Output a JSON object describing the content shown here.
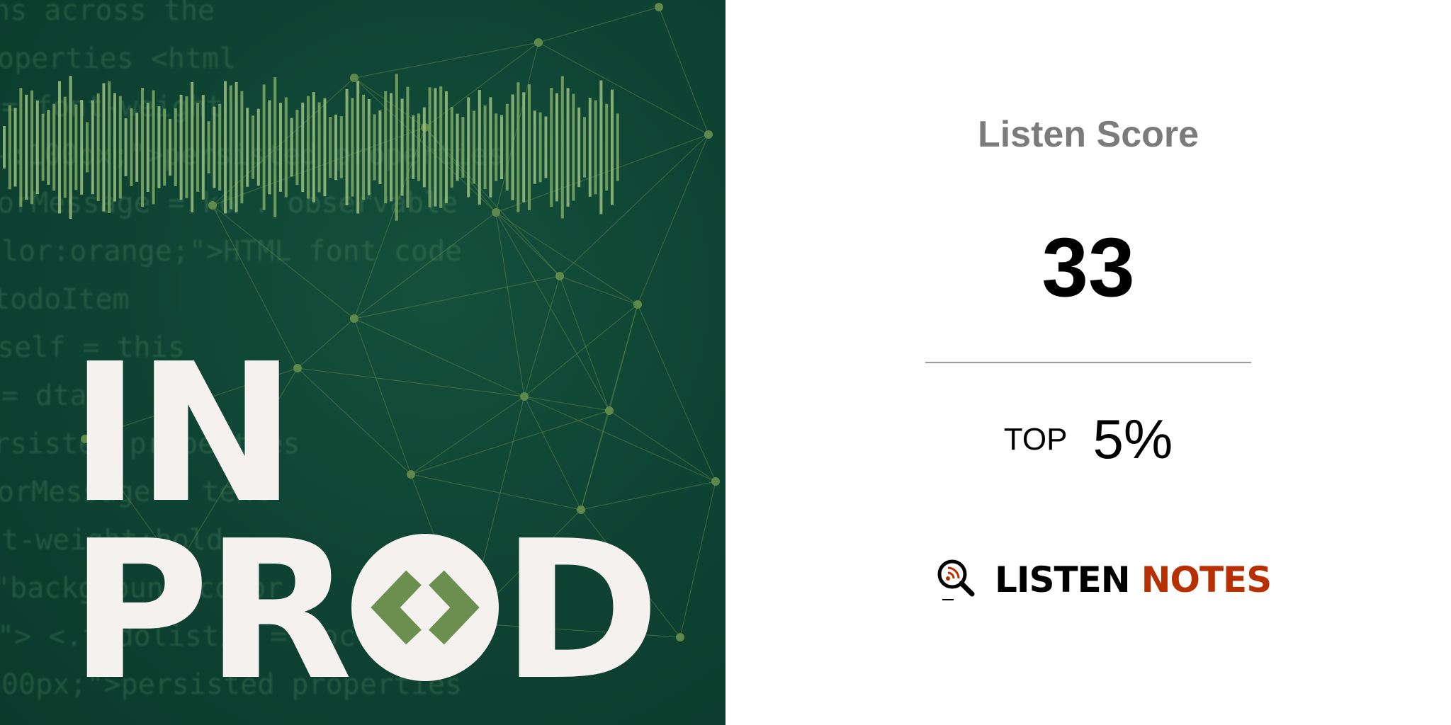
{
  "cover": {
    "title_line1": "IN",
    "title_line2_prefix": "PR",
    "title_line2_suffix": "D",
    "background_color": "#0e4232",
    "accent_color": "#6a8f4e",
    "code_lines": [
      "ns across the",
      "operties  <html",
      "= font-weight",
      "-:100px;\">persisted properties",
      "orMessage = ko . observable",
      "lor:orange;\">HTML font code",
      "todoItem",
      "self = this",
      "= dta",
      "rsisted properties",
      "orMessage = text",
      "t-weight:bold",
      "\"background-color",
      "\"> <.todolistid = doc",
      "00px;\">persisted properties"
    ]
  },
  "score": {
    "title": "Listen Score",
    "value": "33",
    "rank_label": "TOP",
    "rank_value": "5%"
  },
  "logo": {
    "word1": "LISTEN",
    "word2": "NOTES",
    "word1_color": "#000000",
    "word2_color": "#b83000"
  }
}
